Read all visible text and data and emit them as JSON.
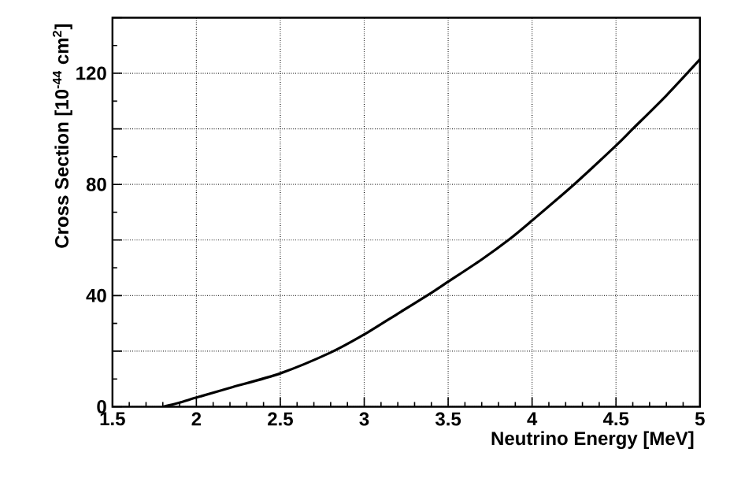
{
  "chart_data": {
    "type": "line",
    "xlabel": "Neutrino Energy [MeV]",
    "ylabel": "Cross Section [10$^{-44}$ cm$^{2}$]",
    "xlim": [
      1.5,
      5
    ],
    "xticks": [
      1.5,
      2,
      2.5,
      3,
      3.5,
      4,
      4.5,
      5
    ],
    "ylim": [
      0,
      140
    ],
    "yticks": [
      0,
      {
        "value": 20,
        "label": null
      },
      40,
      {
        "value": 60,
        "label": null
      },
      80,
      {
        "value": 100,
        "label": null
      },
      120,
      {
        "value": 140,
        "label": null
      }
    ],
    "grid": true,
    "marker": "none",
    "line_style": "solid",
    "series": [
      {
        "color": "#000000",
        "x": [
          1.8,
          1.9,
          2.0,
          2.2,
          2.5,
          2.8,
          3.0,
          3.2,
          3.4,
          3.5,
          3.7,
          3.87,
          4.0,
          4.25,
          4.5,
          4.6,
          4.8,
          5.0
        ],
        "values": [
          0,
          1.5,
          3.3,
          6.8,
          12,
          19.5,
          26,
          33.5,
          41,
          45,
          53,
          60.5,
          67,
          80,
          94,
          100,
          112,
          125
        ]
      }
    ]
  }
}
